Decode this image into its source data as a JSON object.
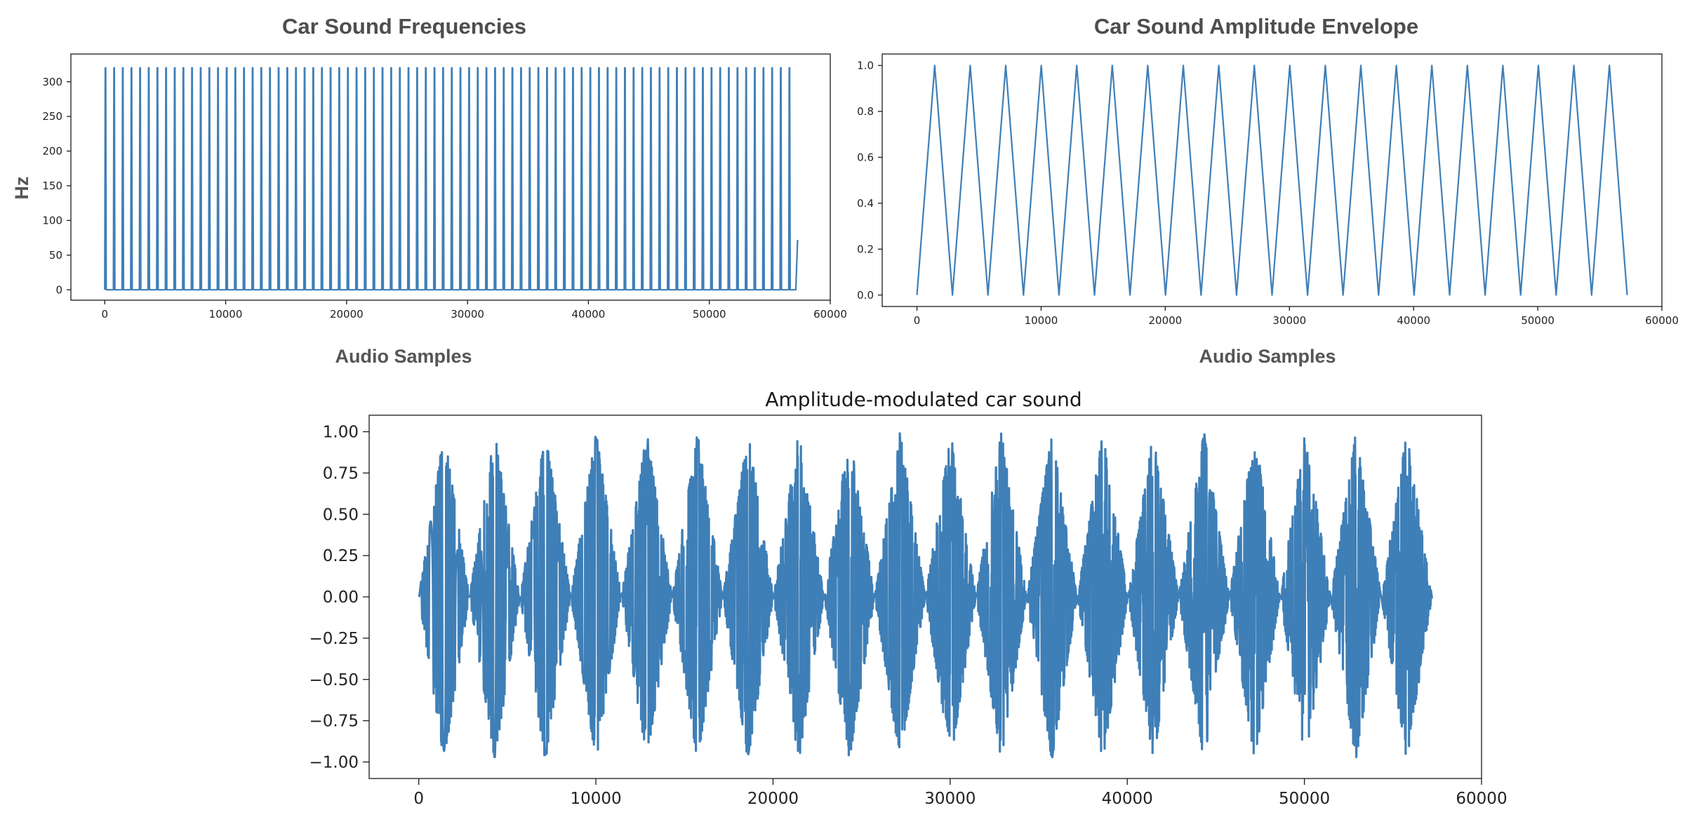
{
  "chart_data": [
    {
      "id": "frequencies",
      "type": "line",
      "title": "Car Sound Frequencies",
      "xlabel": "Audio Samples",
      "ylabel": "Hz",
      "xlim": [
        -2800,
        60000
      ],
      "ylim": [
        -15,
        340
      ],
      "xticks": [
        0,
        10000,
        20000,
        30000,
        40000,
        50000,
        60000
      ],
      "xtick_labels": [
        "0",
        "10000",
        "20000",
        "30000",
        "40000",
        "50000",
        "60000"
      ],
      "yticks": [
        0,
        50,
        100,
        150,
        200,
        250,
        300
      ],
      "ytick_labels": [
        "0",
        "50",
        "100",
        "150",
        "200",
        "250",
        "300"
      ],
      "series": [
        {
          "name": "frequency",
          "color": "#3f7fb7",
          "description_pattern": "repeating pulse",
          "pulse_count": 80,
          "period_samples": 716,
          "start_sample": 0,
          "end_sample": 57300,
          "low_value": 0,
          "high_value": 320,
          "final_value": 72
        }
      ],
      "grid": false
    },
    {
      "id": "envelope",
      "type": "line",
      "title": "Car Sound Amplitude Envelope",
      "xlabel": "Audio Samples",
      "ylabel": "",
      "xlim": [
        -2800,
        60000
      ],
      "ylim": [
        -0.05,
        1.05
      ],
      "xticks": [
        0,
        10000,
        20000,
        30000,
        40000,
        50000,
        60000
      ],
      "xtick_labels": [
        "0",
        "10000",
        "20000",
        "30000",
        "40000",
        "50000",
        "60000"
      ],
      "yticks": [
        0,
        0.2,
        0.4,
        0.6,
        0.8,
        1.0
      ],
      "ytick_labels": [
        "0.0",
        "0.2",
        "0.4",
        "0.6",
        "0.8",
        "1.0"
      ],
      "series": [
        {
          "name": "envelope",
          "color": "#3f7fb7",
          "x": [
            0,
            1430,
            2860,
            4290,
            5720,
            7150,
            8580,
            10010,
            11440,
            12870,
            14300,
            15730,
            17160,
            18590,
            20020,
            21450,
            22880,
            24310,
            25740,
            27170,
            28600,
            30030,
            31460,
            32890,
            34320,
            35750,
            37180,
            38610,
            40040,
            41470,
            42900,
            44330,
            45760,
            47190,
            48620,
            50050,
            51480,
            52910,
            54340,
            55770,
            57200
          ],
          "y": [
            0,
            1,
            0,
            1,
            0,
            1,
            0,
            1,
            0,
            1,
            0,
            1,
            0,
            1,
            0,
            1,
            0,
            1,
            0,
            1,
            0,
            1,
            0,
            1,
            0,
            1,
            0,
            1,
            0,
            1,
            0,
            1,
            0,
            1,
            0,
            1,
            0,
            1,
            0,
            1,
            0
          ]
        }
      ],
      "grid": false
    },
    {
      "id": "modulated",
      "type": "line",
      "title": "Amplitude-modulated car sound",
      "xlabel": "",
      "ylabel": "",
      "xlim": [
        -2800,
        60000
      ],
      "ylim": [
        -1.1,
        1.1
      ],
      "xticks": [
        0,
        10000,
        20000,
        30000,
        40000,
        50000,
        60000
      ],
      "xtick_labels": [
        "0",
        "10000",
        "20000",
        "30000",
        "40000",
        "50000",
        "60000"
      ],
      "yticks": [
        1.0,
        0.75,
        0.5,
        0.25,
        0.0,
        -0.25,
        -0.5,
        -0.75,
        -1.0
      ],
      "ytick_labels": [
        "1.00",
        "0.75",
        "0.50",
        "0.25",
        "0.00",
        "−0.25",
        "−0.50",
        "−0.75",
        "−1.00"
      ],
      "series": [
        {
          "name": "modulated signal",
          "color": "#3f7fb7",
          "description_pattern": "carrier oscillation under triangular envelope",
          "envelope_period_samples": 2860,
          "envelope_peak_samples": [
            1430,
            4290,
            7150,
            10010,
            12870,
            15730,
            18590,
            21450,
            24310,
            27170,
            30030,
            32890,
            35750,
            38610,
            41470,
            44330,
            47190,
            50050,
            52910,
            55770
          ],
          "start_sample": 0,
          "end_sample": 57200,
          "max_value": 1.0,
          "min_value": -0.97
        }
      ],
      "grid": false
    }
  ]
}
